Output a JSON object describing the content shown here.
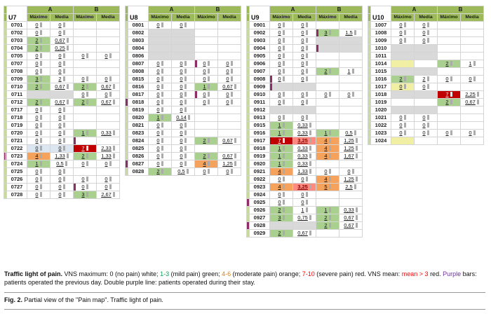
{
  "group_headers": [
    "A",
    "B"
  ],
  "subheaders": [
    "Máximo",
    "Media",
    "Máximo",
    "Media"
  ],
  "colors": {
    "green": "#00a550",
    "orange": "#f07d00",
    "red": "#ff0000",
    "purple": "#7030a0",
    "cell_green": "#a9d08e",
    "cell_orange": "#f4a25c",
    "cell_red": "#c00000",
    "cell_gray": "#d9d9d9",
    "cell_yellow": "#f0efa3",
    "marker_purple": "#8e2e68",
    "header_green": "#9cba5a"
  },
  "legend": {
    "segments": [
      {
        "t": "Traffic light of pain.",
        "b": true
      },
      {
        "t": " VNS maximum: 0 (no pain) white; "
      },
      {
        "t": "1-3",
        "c": "green"
      },
      {
        "t": " (mild pain) green; "
      },
      {
        "t": "4-6",
        "c": "orange"
      },
      {
        "t": " (moderate pain) orange; "
      },
      {
        "t": "7-10",
        "c": "red"
      },
      {
        "t": " (severe pain) red. VNS mean: "
      },
      {
        "t": "mean > 3",
        "c": "red"
      },
      {
        "t": " red. "
      },
      {
        "t": "Purple",
        "c": "purple"
      },
      {
        "t": " bars: patients operated the previous day. Double purple line: patients operated during their stay."
      }
    ]
  },
  "fig_caption": {
    "segments": [
      {
        "t": "Fig. 2.",
        "b": true
      },
      {
        "t": " Partial view of the \"Pain map\". Traffic light of pain."
      }
    ]
  },
  "panels": [
    {
      "unit": "U7",
      "rows": [
        [
          "0701",
          "0",
          "0",
          "",
          "",
          ""
        ],
        [
          "0702",
          "0",
          "0",
          "",
          "",
          ""
        ],
        [
          "0703",
          "2",
          "0,67",
          "",
          "",
          ""
        ],
        [
          "0704",
          "2",
          "0,25",
          "",
          "",
          ""
        ],
        [
          "0705",
          "0",
          "0",
          "0",
          "0",
          ""
        ],
        [
          "0707",
          "0",
          "0",
          "",
          "",
          ""
        ],
        [
          "0708",
          "0",
          "0",
          "",
          "",
          ""
        ],
        [
          "0709",
          "3",
          "2",
          "0",
          "0",
          ""
        ],
        [
          "0710",
          "2",
          "0,67",
          "2",
          "0,67",
          ""
        ],
        [
          "0711",
          "",
          "",
          "0",
          "0",
          "GA"
        ],
        [
          "0712",
          "2",
          "0,67",
          "2",
          "0,67",
          ""
        ],
        [
          "0717",
          "0",
          "0",
          "",
          "",
          ""
        ],
        [
          "0718",
          "0",
          "0",
          "",
          "",
          ""
        ],
        [
          "0719",
          "0",
          "0",
          "",
          "",
          ""
        ],
        [
          "0720",
          "0",
          "0",
          "1",
          "0,33",
          ""
        ],
        [
          "0721",
          "0",
          "0",
          "",
          "",
          "MB"
        ],
        [
          "0722",
          "0",
          "0",
          "7",
          "2,33",
          "SA"
        ],
        [
          "0723",
          "4",
          "1,33",
          "2",
          "1,33",
          "LL"
        ],
        [
          "0724",
          "1",
          "0,5",
          "0",
          "0",
          ""
        ],
        [
          "0725",
          "0",
          "0",
          "",
          "",
          ""
        ],
        [
          "0726",
          "0",
          "0",
          "0",
          "0",
          ""
        ],
        [
          "0727",
          "0",
          "0",
          "0",
          "0",
          "MB"
        ],
        [
          "0728",
          "0",
          "0",
          "3",
          "2,67",
          ""
        ]
      ]
    },
    {
      "unit": "U8",
      "rows": [
        [
          "0801",
          "0",
          "0",
          "",
          "",
          ""
        ],
        [
          "0802",
          "",
          "",
          "",
          "",
          "GA"
        ],
        [
          "0803",
          "",
          "",
          "",
          "",
          "GA"
        ],
        [
          "0804",
          "",
          "",
          "",
          "",
          "GA"
        ],
        [
          "0806",
          "",
          "",
          "",
          "",
          "GA"
        ],
        [
          "0807",
          "0",
          "0",
          "0",
          "0",
          "MB"
        ],
        [
          "0808",
          "0",
          "0",
          "0",
          "0",
          ""
        ],
        [
          "0815",
          "0",
          "0",
          "0",
          "0",
          ""
        ],
        [
          "0816",
          "0",
          "0",
          "1",
          "0,67",
          ""
        ],
        [
          "0817",
          "0",
          "0",
          "0",
          "0",
          "MB"
        ],
        [
          "0818",
          "0",
          "0",
          "0",
          "0",
          "L"
        ],
        [
          "0819",
          "0",
          "0",
          "",
          "",
          ""
        ],
        [
          "0820",
          "1",
          "0,14",
          "",
          "",
          ""
        ],
        [
          "0821",
          "0",
          "0",
          "",
          "",
          ""
        ],
        [
          "0823",
          "0",
          "0",
          "",
          "",
          ""
        ],
        [
          "0824",
          "0",
          "0",
          "2",
          "0,67",
          ""
        ],
        [
          "0825",
          "0",
          "0",
          "",
          "",
          ""
        ],
        [
          "0826",
          "0",
          "0",
          "2",
          "0,67",
          ""
        ],
        [
          "0827",
          "0",
          "0",
          "4",
          "1,25",
          "L"
        ],
        [
          "0828",
          "2",
          "0,5",
          "0",
          "0",
          ""
        ]
      ]
    },
    {
      "unit": "U9",
      "rows": [
        [
          "0901",
          "0",
          "0",
          "",
          "",
          ""
        ],
        [
          "0902",
          "0",
          "0",
          "3",
          "1,5",
          "MB"
        ],
        [
          "0903",
          "0",
          "0",
          "",
          "",
          "GB"
        ],
        [
          "0904",
          "0",
          "0",
          "",
          "",
          "GB MB"
        ],
        [
          "0905",
          "0",
          "0",
          "",
          "",
          ""
        ],
        [
          "0906",
          "0",
          "0",
          "",
          "",
          ""
        ],
        [
          "0907",
          "0",
          "0",
          "2",
          "1",
          ""
        ],
        [
          "0908",
          "0",
          "0",
          "",
          "",
          "MA"
        ],
        [
          "0909",
          "",
          "",
          "",
          "",
          "GA MA"
        ],
        [
          "0910",
          "0",
          "0",
          "0",
          "0",
          ""
        ],
        [
          "0911",
          "0",
          "0",
          "",
          "",
          ""
        ],
        [
          "0912",
          "",
          "",
          "",
          "",
          "GA"
        ],
        [
          "0913",
          "0",
          "0",
          "",
          "",
          ""
        ],
        [
          "0915",
          "1",
          "0,33",
          "",
          "",
          ""
        ],
        [
          "0916",
          "1",
          "0,33",
          "1",
          "0,5",
          ""
        ],
        [
          "0917",
          "7",
          "3,25",
          "4",
          "1,25",
          ""
        ],
        [
          "0918",
          "1",
          "0,33",
          "4",
          "1,25",
          ""
        ],
        [
          "0919",
          "1",
          "0,33",
          "4",
          "1,67",
          ""
        ],
        [
          "0920",
          "1",
          "0,33",
          "",
          "",
          ""
        ],
        [
          "0921",
          "4",
          "1,33",
          "0",
          "0",
          ""
        ],
        [
          "0922",
          "0",
          "0",
          "4",
          "1,25",
          ""
        ],
        [
          "0923",
          "4",
          "3,25",
          "5",
          "2,5",
          ""
        ],
        [
          "0924",
          "0",
          "0",
          "",
          "",
          ""
        ],
        [
          "0925",
          "0",
          "0",
          "",
          "",
          "L"
        ],
        [
          "0926",
          "2",
          "1",
          "1",
          "0,33",
          ""
        ],
        [
          "0927",
          "3",
          "0,75",
          "2",
          "0,67",
          ""
        ],
        [
          "0928",
          "",
          "",
          "2",
          "0,67",
          "L GA"
        ],
        [
          "0929",
          "2",
          "0,67",
          "",
          "",
          ""
        ]
      ]
    },
    {
      "unit": "U10",
      "rows": [
        [
          "1007",
          "0",
          "0",
          "",
          "",
          ""
        ],
        [
          "1008",
          "0",
          "0",
          "",
          "",
          ""
        ],
        [
          "1009",
          "0",
          "0",
          "",
          "",
          ""
        ],
        [
          "1010",
          "",
          "",
          "",
          "",
          "GA"
        ],
        [
          "1011",
          "",
          "",
          "",
          "",
          "GA"
        ],
        [
          "1014",
          "",
          "",
          "2",
          "1",
          "YA"
        ],
        [
          "1015",
          "",
          "",
          "",
          "",
          "GA"
        ],
        [
          "1016",
          "2",
          "2",
          "0",
          "0",
          ""
        ],
        [
          "1017",
          "0",
          "0",
          "",
          "",
          "YA"
        ],
        [
          "1018",
          "",
          "",
          "7",
          "2,25",
          "GA"
        ],
        [
          "1019",
          "",
          "",
          "2",
          "0,67",
          ""
        ],
        [
          "1020",
          "",
          "",
          "",
          "",
          "GA"
        ],
        [
          "1021",
          "0",
          "0",
          "",
          "",
          ""
        ],
        [
          "1022",
          "0",
          "0",
          "",
          "",
          ""
        ],
        [
          "1023",
          "0",
          "0",
          "0",
          "0",
          ""
        ],
        [
          "1024",
          "",
          "",
          "",
          "",
          "YA"
        ]
      ]
    }
  ]
}
